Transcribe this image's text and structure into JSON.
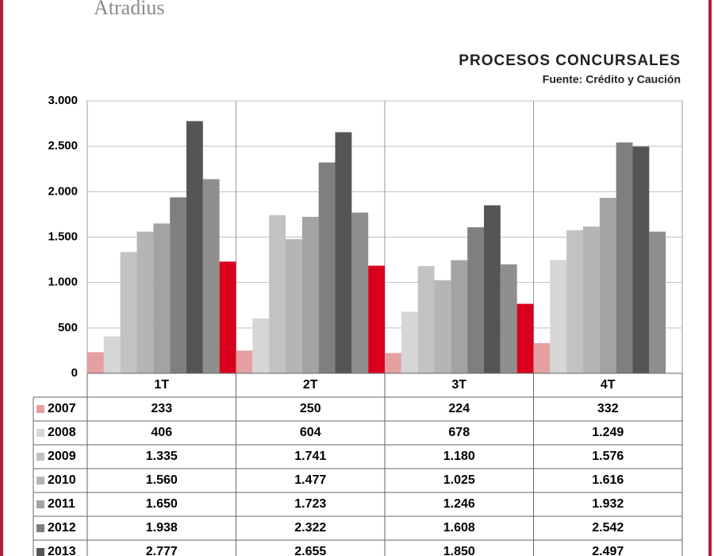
{
  "logo": "Atradius",
  "chart_data": {
    "type": "bar",
    "title": "PROCESOS CONCURSALES",
    "subtitle": "Fuente: Crédito y Caución",
    "categories": [
      "1T",
      "2T",
      "3T",
      "4T"
    ],
    "ylim": [
      0,
      3000
    ],
    "yticks": [
      0,
      {
        "value": 500,
        "label": "500"
      },
      {
        "value": 1000,
        "label": "1.000"
      },
      {
        "value": 1500,
        "label": "1.500"
      },
      {
        "value": 2000,
        "label": "2.000"
      },
      {
        "value": 2500,
        "label": "2.500"
      },
      {
        "value": 3000,
        "label": "3.000"
      }
    ],
    "grid": true,
    "series": [
      {
        "name": "2007",
        "color": "#e4a0a0",
        "values": [
          233,
          250,
          224,
          332
        ],
        "value_labels": [
          "233",
          "250",
          "224",
          "332"
        ]
      },
      {
        "name": "2008",
        "color": "#d6d6d6",
        "values": [
          406,
          604,
          678,
          1249
        ],
        "value_labels": [
          "406",
          "604",
          "678",
          "1.249"
        ]
      },
      {
        "name": "2009",
        "color": "#c2c2c2",
        "values": [
          1335,
          1741,
          1180,
          1576
        ],
        "value_labels": [
          "1.335",
          "1.741",
          "1.180",
          "1.576"
        ]
      },
      {
        "name": "2010",
        "color": "#b5b5b5",
        "values": [
          1560,
          1477,
          1025,
          1616
        ],
        "value_labels": [
          "1.560",
          "1.477",
          "1.025",
          "1.616"
        ]
      },
      {
        "name": "2011",
        "color": "#a3a3a3",
        "values": [
          1650,
          1723,
          1246,
          1932
        ],
        "value_labels": [
          "1.650",
          "1.723",
          "1.246",
          "1.932"
        ]
      },
      {
        "name": "2012",
        "color": "#7f7f7f",
        "values": [
          1938,
          2322,
          1608,
          2542
        ],
        "value_labels": [
          "1.938",
          "2.322",
          "1.608",
          "2.542"
        ]
      },
      {
        "name": "2013",
        "color": "#555555",
        "values": [
          2777,
          2655,
          1850,
          2497
        ],
        "value_labels": [
          "2.777",
          "2.655",
          "1.850",
          "2.497"
        ]
      },
      {
        "color": "#8f8f8f",
        "values": [
          2138,
          1770,
          1200,
          1560
        ]
      },
      {
        "color": "#d8001c",
        "values": [
          1230,
          1185,
          765,
          null
        ]
      }
    ]
  }
}
